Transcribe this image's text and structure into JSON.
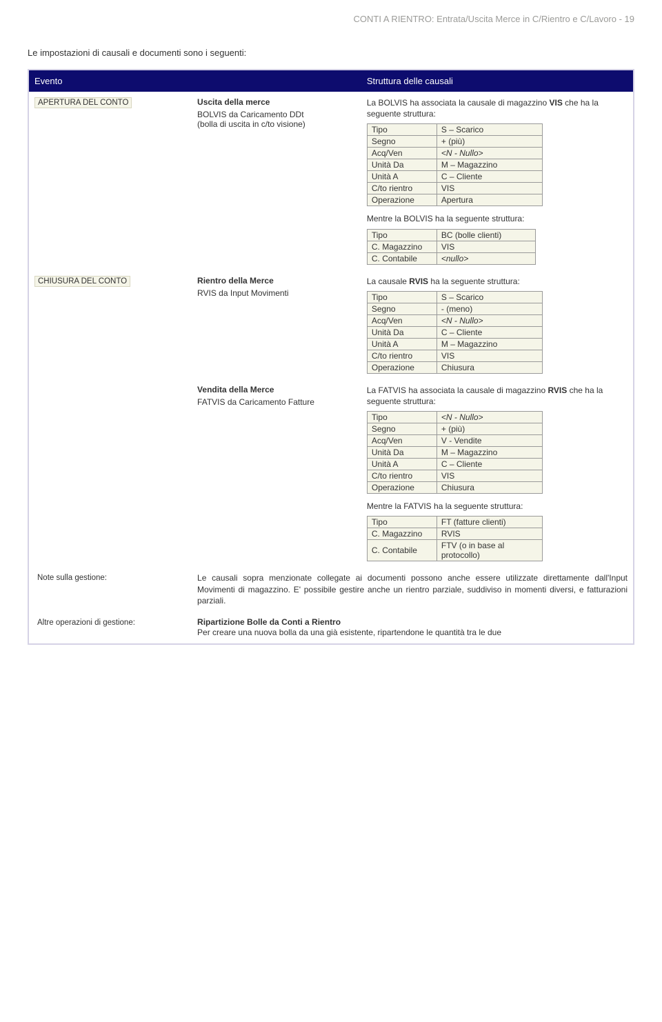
{
  "header": "CONTI A RIENTRO: Entrata/Uscita Merce in C/Rientro e C/Lavoro - 19",
  "intro": "Le impostazioni di causali e documenti sono i seguenti:",
  "columns": {
    "evento": "Evento",
    "struttura": "Struttura delle causali"
  },
  "apertura": {
    "label": "APERTURA DEL CONTO",
    "mid_title": "Uscita della merce",
    "mid_sub1": "BOLVIS da Caricamento DDt",
    "mid_sub2": "(bolla di uscita  in c/to visione)",
    "right_intro1": "La BOLVIS ha associata la causale di magazzino ",
    "right_intro1_bold": "VIS",
    "right_intro1_tail": " che ha la seguente struttura:",
    "table1": {
      "rows": [
        [
          "Tipo",
          "S – Scarico"
        ],
        [
          "Segno",
          "+ (più)"
        ],
        [
          "Acq/Ven",
          "<N - Nullo>"
        ],
        [
          "Unità Da",
          "M – Magazzino"
        ],
        [
          "Unità A",
          "C – Cliente"
        ],
        [
          "C/to rientro",
          "VIS"
        ],
        [
          "Operazione",
          "Apertura"
        ]
      ]
    },
    "mentre": "Mentre la BOLVIS ha la seguente struttura:",
    "table2": {
      "rows": [
        [
          "Tipo",
          "BC (bolle clienti)"
        ],
        [
          "C. Magazzino",
          "VIS"
        ],
        [
          "C. Contabile",
          "<nullo>"
        ]
      ]
    }
  },
  "chiusura": {
    "label": "CHIUSURA DEL CONTO",
    "mid_title": "Rientro della Merce",
    "mid_sub": "RVIS da Input Movimenti",
    "right_intro": "La causale ",
    "right_intro_bold": "RVIS",
    "right_intro_tail": " ha la seguente struttura:",
    "table1": {
      "rows": [
        [
          "Tipo",
          "S – Scarico"
        ],
        [
          "Segno",
          "- (meno)"
        ],
        [
          "Acq/Ven",
          "<N - Nullo>"
        ],
        [
          "Unità Da",
          "C – Cliente"
        ],
        [
          "Unità A",
          "M – Magazzino"
        ],
        [
          "C/to rientro",
          "VIS"
        ],
        [
          "Operazione",
          "Chiusura"
        ]
      ]
    },
    "mid_title2": "Vendita della Merce",
    "mid_sub2": "FATVIS da Caricamento Fatture",
    "right_intro2a": "La FATVIS ha associata la causale di magazzino ",
    "right_intro2_bold": "RVIS",
    "right_intro2b": " che ha la seguente struttura:",
    "table2": {
      "rows": [
        [
          "Tipo",
          "<N - Nullo>"
        ],
        [
          "Segno",
          "+ (più)"
        ],
        [
          "Acq/Ven",
          "V - Vendite"
        ],
        [
          "Unità Da",
          "M – Magazzino"
        ],
        [
          "Unità A",
          "C – Cliente"
        ],
        [
          "C/to rientro",
          "VIS"
        ],
        [
          "Operazione",
          "Chiusura"
        ]
      ]
    },
    "mentre2": "Mentre la FATVIS ha la seguente struttura:",
    "table3": {
      "rows": [
        [
          "Tipo",
          "FT (fatture clienti)"
        ],
        [
          "C. Magazzino",
          "RVIS"
        ],
        [
          "C. Contabile",
          "FTV (o in base al protocollo)"
        ]
      ]
    }
  },
  "notes": {
    "label1": "Note sulla gestione:",
    "text1": "Le causali sopra menzionate collegate ai documenti possono anche essere utilizzate direttamente dall'Input Movimenti di magazzino. E' possibile gestire anche un rientro parziale, suddiviso in momenti diversi, e fatturazioni parziali.",
    "label2": "Altre operazioni di gestione:",
    "title2": "Ripartizione Bolle da Conti a Rientro",
    "text2": "Per creare una nuova bolla da una già esistente, ripartendone le quantità tra le due"
  }
}
